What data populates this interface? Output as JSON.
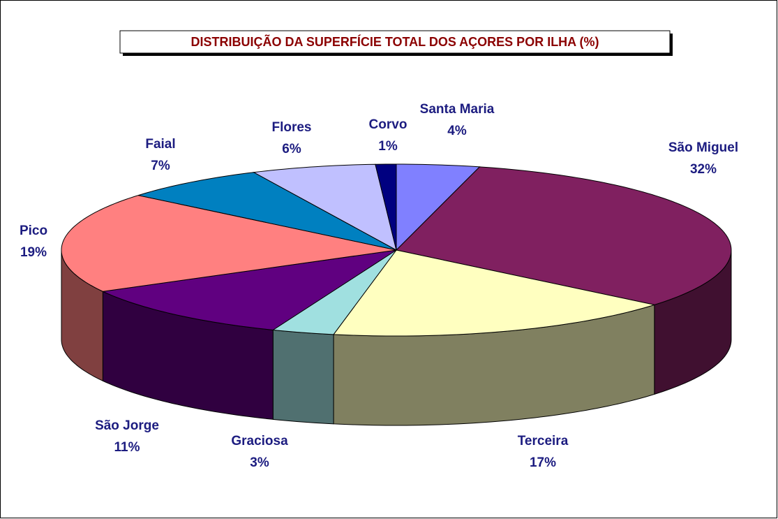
{
  "chart_data": {
    "type": "pie3d",
    "title": "DISTRIBUIÇÃO DA SUPERFÍCIE TOTAL DOS AÇORES POR ILHA (%)",
    "categories": [
      "Santa Maria",
      "São Miguel",
      "Terceira",
      "Graciosa",
      "São Jorge",
      "Pico",
      "Faial",
      "Flores",
      "Corvo"
    ],
    "values": [
      4,
      32,
      17,
      3,
      11,
      19,
      7,
      6,
      1
    ],
    "value_labels": [
      "4%",
      "32%",
      "17%",
      "3%",
      "11%",
      "19%",
      "7%",
      "6%",
      "1%"
    ],
    "colors": [
      "#8080ff",
      "#802060",
      "#ffffc0",
      "#a0e0e0",
      "#600080",
      "#ff8080",
      "#0080c0",
      "#c0c0ff",
      "#000080"
    ]
  }
}
